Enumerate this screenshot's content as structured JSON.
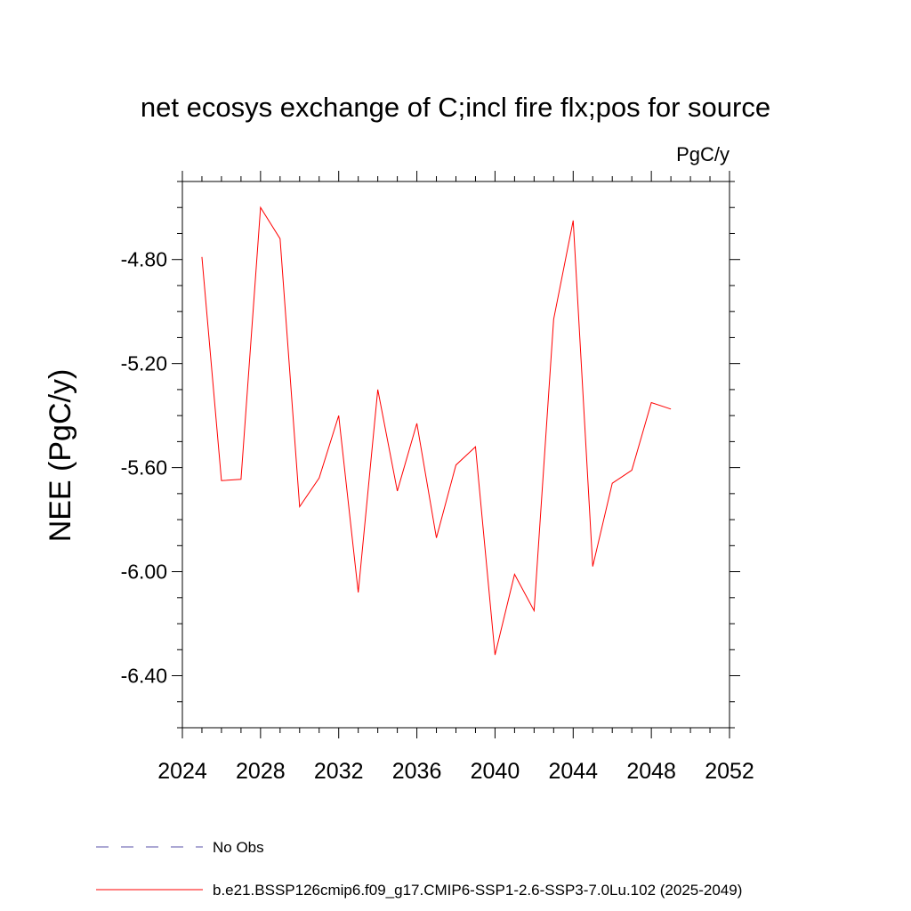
{
  "chart_data": {
    "type": "line",
    "title": "net ecosys exchange of C;incl fire flx;pos for source",
    "units_label": "PgC/y",
    "ylabel": "NEE  (PgC/y)",
    "xlabel": "",
    "xlim": [
      2024,
      2052
    ],
    "ylim": [
      -6.6,
      -4.5
    ],
    "x_ticks": [
      "2024",
      "2028",
      "2032",
      "2036",
      "2040",
      "2044",
      "2048",
      "2052"
    ],
    "y_ticks": [
      "-4.80",
      "-5.20",
      "-5.60",
      "-6.00",
      "-6.40"
    ],
    "grid": false,
    "legend_position": "bottom-left",
    "series": [
      {
        "name": "b.e21.BSSP126cmip6.f09_g17.CMIP6-SSP1-2.6-SSP3-7.0Lu.102 (2025-2049)",
        "color": "#ff0000",
        "style": "solid",
        "x": [
          2025,
          2026,
          2027,
          2028,
          2029,
          2030,
          2031,
          2032,
          2033,
          2034,
          2035,
          2036,
          2037,
          2038,
          2039,
          2040,
          2041,
          2042,
          2043,
          2044,
          2045,
          2046,
          2047,
          2048,
          2049
        ],
        "y": [
          -4.79,
          -5.65,
          -5.645,
          -4.6,
          -4.72,
          -5.75,
          -5.64,
          -5.4,
          -6.08,
          -5.3,
          -5.69,
          -5.43,
          -5.87,
          -5.59,
          -5.52,
          -6.32,
          -6.01,
          -6.15,
          -5.03,
          -4.65,
          -5.98,
          -5.66,
          -5.61,
          -5.35,
          -5.375
        ]
      }
    ],
    "legend": [
      {
        "label": "No Obs",
        "color": "#5a52a8",
        "style": "dashed"
      },
      {
        "label": "b.e21.BSSP126cmip6.f09_g17.CMIP6-SSP1-2.6-SSP3-7.0Lu.102 (2025-2049)",
        "color": "#ff0000",
        "style": "solid"
      }
    ]
  }
}
